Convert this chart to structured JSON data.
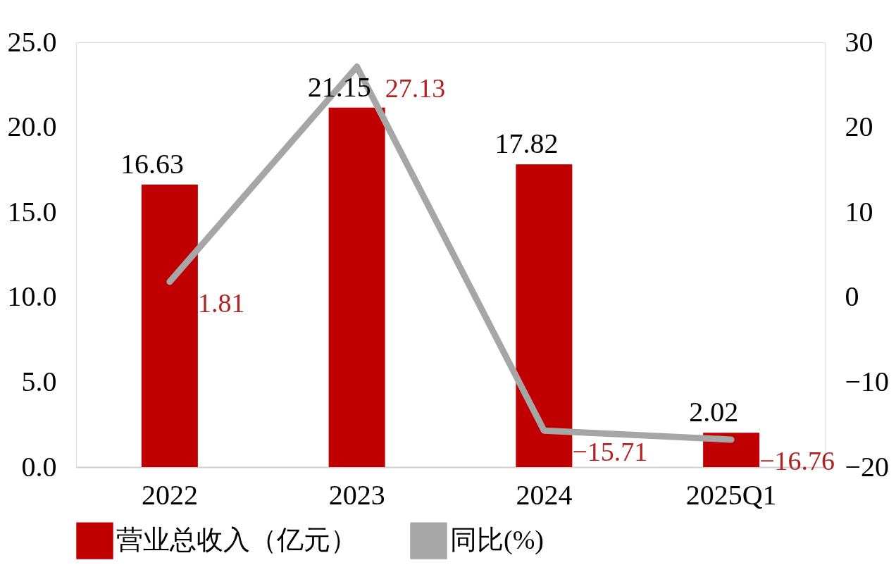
{
  "chart_data": {
    "type": "bar",
    "categories": [
      "2022",
      "2023",
      "2024",
      "2025Q1"
    ],
    "series": [
      {
        "name": "营业总收入（亿元）",
        "color": "#c00000",
        "values": [
          16.63,
          21.15,
          17.82,
          2.02
        ]
      },
      {
        "name": "同比(%)",
        "type": "line",
        "axis": "y2",
        "color": "#a6a6a6",
        "values": [
          1.81,
          27.13,
          -15.71,
          -16.76
        ]
      }
    ],
    "ylim": [
      0,
      25
    ],
    "yticks": [
      {
        "value": 0,
        "label": "0.0"
      },
      {
        "value": 5,
        "label": "5.0"
      },
      {
        "value": 10,
        "label": "10.0"
      },
      {
        "value": 15,
        "label": "15.0"
      },
      {
        "value": 20,
        "label": "20.0"
      },
      {
        "value": 25,
        "label": "25.0"
      }
    ],
    "y2lim": [
      -20,
      30
    ],
    "y2ticks": [
      -20,
      -10,
      0,
      10,
      20,
      30
    ],
    "data_labels": true,
    "grid": false,
    "legend": "bottom",
    "line_style": "solid"
  }
}
